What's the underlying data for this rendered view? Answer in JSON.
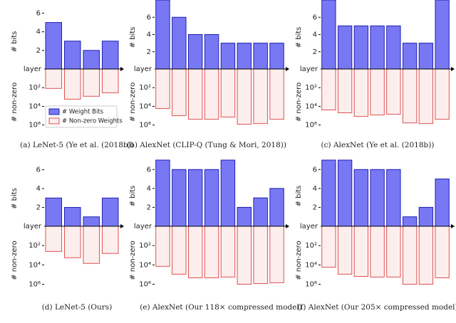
{
  "chart_data": [
    {
      "type": "bar",
      "caption": "(a) LeNet-5 (Ye et al. (2018b))",
      "categories": [
        null,
        null,
        null,
        null
      ],
      "x_label": "layer",
      "y_label": "# bits",
      "y2_label": "# non-zero",
      "ylim": [
        0,
        6.5
      ],
      "yticks": [
        2,
        4,
        6
      ],
      "y2lim": [
        1,
        3000000
      ],
      "y2scale": "log",
      "y2_inverted": true,
      "y2ticks": [
        {
          "value": 100,
          "label": "10²"
        },
        {
          "value": 10000,
          "label": "10⁴"
        },
        {
          "value": 1000000,
          "label": "10⁶"
        }
      ],
      "legend": "lower center",
      "series": [
        {
          "name": "# Weight Bits",
          "color": "#7878f5",
          "edgecolor": "#2020b0",
          "values": [
            5,
            3,
            2,
            3
          ]
        },
        {
          "name": "# Non-zero Weights",
          "color": "#fdeeee",
          "edgecolor": "#e05050",
          "axis": "y2",
          "values": [
            120,
            1700,
            830,
            350
          ]
        }
      ]
    },
    {
      "type": "bar",
      "caption": "(b) AlexNet (CLIP-Q (Tung & Mori, 2018))",
      "categories": [
        null,
        null,
        null,
        null,
        null,
        null,
        null,
        null
      ],
      "x_label": "layer",
      "y_label": "# bits",
      "y2_label": "# non-zero",
      "ylim": [
        0,
        8
      ],
      "yticks": [
        2,
        4,
        6
      ],
      "y2lim": [
        1,
        3000000
      ],
      "y2scale": "log",
      "y2_inverted": true,
      "y2ticks": [
        {
          "value": 100,
          "label": "10²"
        },
        {
          "value": 10000,
          "label": "10⁴"
        },
        {
          "value": 1000000,
          "label": "10⁶"
        }
      ],
      "series": [
        {
          "color": "#7878f5",
          "edgecolor": "#2020b0",
          "values": [
            8,
            6,
            4,
            4,
            3,
            3,
            3,
            3
          ]
        },
        {
          "color": "#fdeeee",
          "edgecolor": "#e05050",
          "axis": "y2",
          "values": [
            17000,
            100000,
            240000,
            240000,
            140000,
            830000,
            700000,
            240000
          ]
        }
      ]
    },
    {
      "type": "bar",
      "caption": "(c) AlexNet (Ye et al. (2018b))",
      "categories": [
        null,
        null,
        null,
        null,
        null,
        null,
        null,
        null
      ],
      "x_label": "layer",
      "y_label": "# bits",
      "y2_label": "# non-zero",
      "ylim": [
        0,
        8
      ],
      "yticks": [
        2,
        4,
        6
      ],
      "y2lim": [
        1,
        3000000
      ],
      "y2scale": "log",
      "y2_inverted": true,
      "y2ticks": [
        {
          "value": 100,
          "label": "10²"
        },
        {
          "value": 10000,
          "label": "10⁴"
        },
        {
          "value": 1000000,
          "label": "10⁶"
        }
      ],
      "series": [
        {
          "color": "#7878f5",
          "edgecolor": "#2020b0",
          "values": [
            8,
            5,
            5,
            5,
            5,
            3,
            3,
            8
          ]
        },
        {
          "color": "#fdeeee",
          "edgecolor": "#e05050",
          "axis": "y2",
          "values": [
            24000,
            49000,
            120000,
            84000,
            70000,
            590000,
            700000,
            240000
          ]
        }
      ]
    },
    {
      "type": "bar",
      "caption": "(d) LeNet-5 (Ours)",
      "categories": [
        null,
        null,
        null,
        null
      ],
      "x_label": "layer",
      "y_label": "# bits",
      "y2_label": "# non-zero",
      "ylim": [
        0,
        6.5
      ],
      "yticks": [
        2,
        4,
        6
      ],
      "y2lim": [
        1,
        3000000
      ],
      "y2scale": "log",
      "y2_inverted": true,
      "y2ticks": [
        {
          "value": 100,
          "label": "10²"
        },
        {
          "value": 10000,
          "label": "10⁴"
        },
        {
          "value": 1000000,
          "label": "10⁶"
        }
      ],
      "series": [
        {
          "color": "#7878f5",
          "edgecolor": "#2020b0",
          "values": [
            3,
            2,
            1,
            3
          ]
        },
        {
          "color": "#fdeeee",
          "edgecolor": "#e05050",
          "axis": "y2",
          "values": [
            400,
            1800,
            7000,
            650
          ]
        }
      ]
    },
    {
      "type": "bar",
      "caption": "(e) AlexNet (Our 118× compressed model)",
      "categories": [
        null,
        null,
        null,
        null,
        null,
        null,
        null,
        null
      ],
      "x_label": "layer",
      "y_label": "# bits",
      "y2_label": "# non-zero",
      "ylim": [
        0,
        7
      ],
      "yticks": [
        2,
        4,
        6
      ],
      "y2lim": [
        1,
        3000000
      ],
      "y2scale": "log",
      "y2_inverted": true,
      "y2ticks": [
        {
          "value": 100,
          "label": "10²"
        },
        {
          "value": 10000,
          "label": "10⁴"
        },
        {
          "value": 1000000,
          "label": "10⁶"
        }
      ],
      "series": [
        {
          "color": "#7878f5",
          "edgecolor": "#2020b0",
          "values": [
            7,
            6,
            6,
            6,
            7,
            2,
            3,
            4
          ]
        },
        {
          "color": "#fdeeee",
          "edgecolor": "#e05050",
          "axis": "y2",
          "values": [
            14000,
            91000,
            215000,
            215000,
            180000,
            1000000,
            850000,
            700000
          ]
        }
      ]
    },
    {
      "type": "bar",
      "caption": "(f) AlexNet (Our 205× compressed model)",
      "categories": [
        null,
        null,
        null,
        null,
        null,
        null,
        null,
        null
      ],
      "x_label": "layer",
      "y_label": "# bits",
      "y2_label": "# non-zero",
      "ylim": [
        0,
        7
      ],
      "yticks": [
        2,
        4,
        6
      ],
      "y2lim": [
        1,
        3000000
      ],
      "y2scale": "log",
      "y2_inverted": true,
      "y2ticks": [
        {
          "value": 100,
          "label": "10²"
        },
        {
          "value": 10000,
          "label": "10⁴"
        },
        {
          "value": 1000000,
          "label": "10⁶"
        }
      ],
      "series": [
        {
          "color": "#7878f5",
          "edgecolor": "#2020b0",
          "values": [
            7,
            7,
            6,
            6,
            6,
            1,
            2,
            5
          ]
        },
        {
          "color": "#fdeeee",
          "edgecolor": "#e05050",
          "axis": "y2",
          "values": [
            17000,
            91000,
            155000,
            180000,
            180000,
            1000000,
            1000000,
            215000
          ]
        }
      ]
    }
  ]
}
